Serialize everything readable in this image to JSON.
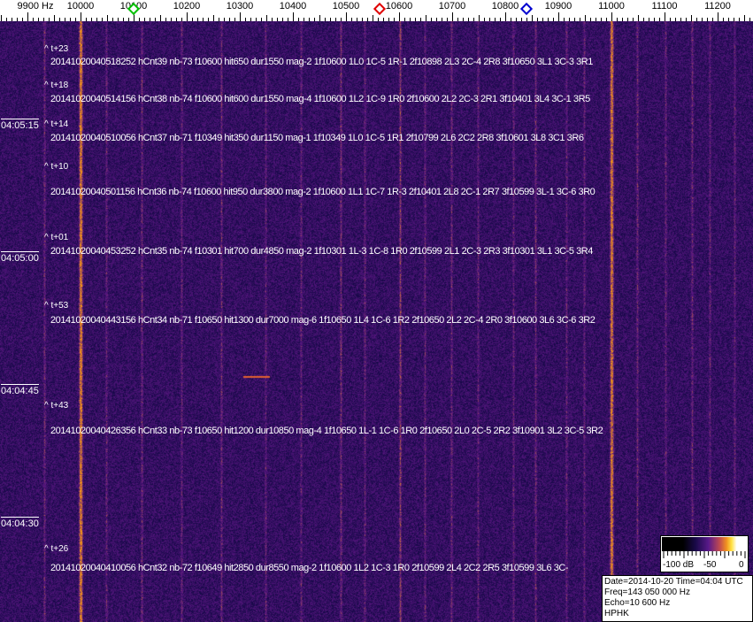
{
  "axis": {
    "unit_label": "9900 Hz",
    "ticks": [
      "10000",
      "10100",
      "10200",
      "10300",
      "10400",
      "10500",
      "10600",
      "10700",
      "10800",
      "10900",
      "11000",
      "11100",
      "11200"
    ],
    "tick_values": [
      10000,
      10100,
      10200,
      10300,
      10400,
      10500,
      10600,
      10700,
      10800,
      10900,
      11000,
      11100,
      11200
    ],
    "markers": [
      {
        "name": "green-marker",
        "freq": 10100,
        "color": "#00c000"
      },
      {
        "name": "red-marker",
        "freq": 10563,
        "color": "#e00000"
      },
      {
        "name": "blue-marker",
        "freq": 10840,
        "color": "#0000d0"
      }
    ]
  },
  "time_labels": [
    "04:05:15",
    "04:05:00",
    "04:04:45",
    "04:04:30"
  ],
  "offset_labels": [
    "^ t+23",
    "^ t+18",
    "^ t+14",
    "^ t+10",
    "^ t+01",
    "^ t+53",
    "^ t+43",
    "^ t+26"
  ],
  "detections": [
    "20141020040518252 hCnt39 nb-73 f10600 hit650 dur1550 mag-2 1f10600 1L0 1C-5 1R-1 2f10898 2L3 2C-4 2R8 3f10650 3L1 3C-3 3R1",
    "20141020040514156 hCnt38 nb-74 f10600 hit600 dur1550 mag-4 1f10600 1L2 1C-9 1R0 2f10600 2L2 2C-3 2R1 3f10401 3L4 3C-1 3R5",
    "20141020040510056 hCnt37 nb-71 f10349 hit350 dur1150 mag-1 1f10349 1L0 1C-5 1R1 2f10799 2L6 2C2 2R8 3f10601 3L8 3C1 3R6",
    "20141020040501156 hCnt36 nb-74 f10600 hit950 dur3800 mag-2 1f10600 1L1 1C-7 1R-3 2f10401 2L8 2C-1 2R7 3f10599 3L-1 3C-6 3R0",
    "20141020040453252 hCnt35 nb-74 f10301 hit700 dur4850 mag-2 1f10301 1L-3 1C-8 1R0 2f10599 2L1 2C-3 2R3 3f10301 3L1 3C-5 3R4",
    "20141020040443156 hCnt34 nb-71 f10650 hit1300 dur7000 mag-6 1f10650 1L4 1C-6 1R2 2f10650 2L2 2C-4 2R0 3f10600 3L6 3C-6 3R2",
    "20141020040426356 hCnt33 nb-73 f10650 hit1200 dur10850 mag-4 1f10650 1L-1 1C-6 1R0 2f10650 2L0 2C-5 2R2 3f10901 3L2 3C-5 3R2",
    "20141020040410056 hCnt32 nb-72 f10649 hit2850 dur8550 mag-2 1f10600 1L2 1C-3 1R0 2f10599 2L4 2C2 2R5 3f10599 3L6 3C-"
  ],
  "colorbar": {
    "labels": [
      "-100 dB",
      "-50",
      "0"
    ]
  },
  "info": {
    "date_time": "Date=2014-10-20 Time=04:04 UTC",
    "freq": "Freq=143 050 000 Hz",
    "echo": "Echo=10 600 Hz",
    "station": "HPHK"
  },
  "colors": {
    "background": "#2a1070",
    "carrier": "#f09020"
  }
}
